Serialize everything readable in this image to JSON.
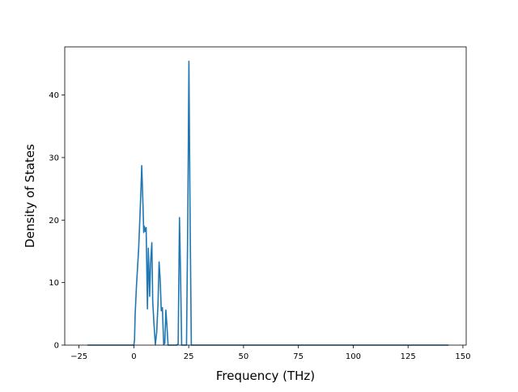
{
  "chart_data": {
    "type": "line",
    "title": "",
    "xlabel": "Frequency (THz)",
    "ylabel": "Density of States",
    "xlim": [
      -31.5,
      151.5
    ],
    "ylim": [
      0,
      47.7
    ],
    "x_ticks": [
      -25,
      0,
      25,
      50,
      75,
      100,
      125,
      150
    ],
    "x_tick_labels": [
      "−25",
      "0",
      "25",
      "50",
      "75",
      "100",
      "125",
      "150"
    ],
    "y_ticks": [
      0,
      10,
      20,
      30,
      40
    ],
    "y_tick_labels": [
      "0",
      "10",
      "20",
      "30",
      "40"
    ],
    "grid": false,
    "legend": "none",
    "series": [
      {
        "color": "#1f77b4",
        "x": [
          -21.2,
          0,
          0.3,
          0.6,
          1.2,
          2.2,
          3.1,
          3.6,
          4.2,
          4.5,
          4.8,
          5.2,
          5.6,
          6.2,
          6.6,
          7.2,
          7.6,
          8.2,
          8.6,
          9.2,
          9.8,
          10.4,
          11.0,
          11.5,
          12.0,
          12.5,
          13.0,
          13.6,
          14.1,
          14.6,
          15.1,
          15.6,
          16.2,
          19.5,
          20.2,
          20.8,
          21.3,
          21.8,
          22.4,
          24.0,
          24.6,
          25.1,
          25.6,
          26.2,
          27.0,
          143.5
        ],
        "y": [
          0,
          0,
          0.8,
          5.0,
          9.5,
          15.5,
          23.5,
          28.7,
          22.0,
          18.0,
          19.0,
          18.2,
          18.8,
          5.8,
          15.5,
          7.8,
          13.0,
          16.4,
          7.0,
          3.2,
          0.1,
          2.0,
          6.5,
          13.3,
          10.5,
          5.5,
          6.0,
          0.1,
          0.3,
          5.6,
          3.0,
          0,
          0,
          0,
          0.2,
          20.4,
          11.0,
          0,
          0,
          0,
          20.5,
          45.4,
          22.0,
          0,
          0,
          0
        ]
      }
    ]
  }
}
